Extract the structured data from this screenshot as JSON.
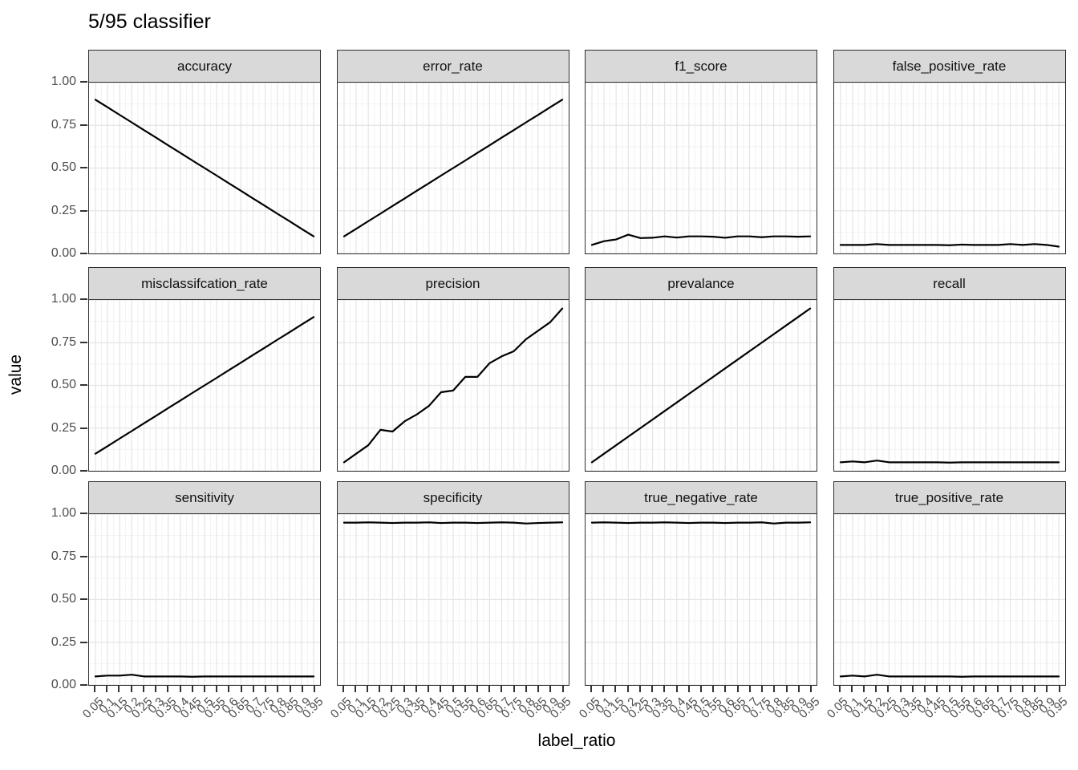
{
  "title": "5/95 classifier",
  "y_axis": {
    "title": "value",
    "tick_labels": [
      "1.00",
      "0.75",
      "0.50",
      "0.25",
      "0.00"
    ]
  },
  "x_axis": {
    "title": "label_ratio",
    "tick_labels": [
      "0.05",
      "0.1",
      "0.15",
      "0.2",
      "0.25",
      "0.3",
      "0.35",
      "0.4",
      "0.45",
      "0.5",
      "0.55",
      "0.6",
      "0.65",
      "0.7",
      "0.75",
      "0.8",
      "0.85",
      "0.9",
      "0.95"
    ]
  },
  "colors": {
    "line": "#000000",
    "strip_background": "#d9d9d9",
    "panel_border": "#2f2f2f",
    "grid_major": "#e4e4e4",
    "grid_minor": "#f2f2f2",
    "axis_text": "#4d4d4d",
    "tick_mark": "#333333"
  },
  "chart_data": {
    "type": "line",
    "title": "5/95 classifier",
    "xlabel": "label_ratio",
    "ylabel": "value",
    "ylim": [
      0,
      1
    ],
    "grid": "on",
    "legend": "none",
    "facet_layout": {
      "rows": 3,
      "cols": 4
    },
    "x": [
      0.05,
      0.1,
      0.15,
      0.2,
      0.25,
      0.3,
      0.35,
      0.4,
      0.45,
      0.5,
      0.55,
      0.6,
      0.65,
      0.7,
      0.75,
      0.8,
      0.85,
      0.9,
      0.95
    ],
    "y_major_ticks": [
      0.0,
      0.25,
      0.5,
      0.75,
      1.0
    ],
    "facets": [
      {
        "name": "accuracy",
        "values": [
          0.9,
          0.856,
          0.811,
          0.767,
          0.722,
          0.678,
          0.633,
          0.589,
          0.544,
          0.5,
          0.456,
          0.411,
          0.367,
          0.322,
          0.278,
          0.233,
          0.189,
          0.144,
          0.1
        ]
      },
      {
        "name": "error_rate",
        "values": [
          0.1,
          0.144,
          0.189,
          0.233,
          0.278,
          0.322,
          0.367,
          0.411,
          0.456,
          0.5,
          0.544,
          0.589,
          0.633,
          0.678,
          0.722,
          0.767,
          0.811,
          0.856,
          0.9
        ]
      },
      {
        "name": "f1_score",
        "values": [
          0.05,
          0.072,
          0.082,
          0.11,
          0.09,
          0.092,
          0.1,
          0.093,
          0.1,
          0.1,
          0.098,
          0.092,
          0.1,
          0.1,
          0.095,
          0.1,
          0.1,
          0.098,
          0.1
        ]
      },
      {
        "name": "false_positive_rate",
        "values": [
          0.05,
          0.05,
          0.05,
          0.055,
          0.05,
          0.05,
          0.05,
          0.05,
          0.05,
          0.048,
          0.052,
          0.05,
          0.05,
          0.05,
          0.055,
          0.05,
          0.055,
          0.05,
          0.04
        ]
      },
      {
        "name": "misclassifcation_rate",
        "values": [
          0.1,
          0.144,
          0.189,
          0.233,
          0.278,
          0.322,
          0.367,
          0.411,
          0.456,
          0.5,
          0.544,
          0.589,
          0.633,
          0.678,
          0.722,
          0.767,
          0.811,
          0.856,
          0.9
        ]
      },
      {
        "name": "precision",
        "values": [
          0.05,
          0.1,
          0.15,
          0.24,
          0.23,
          0.29,
          0.33,
          0.38,
          0.46,
          0.47,
          0.55,
          0.55,
          0.63,
          0.67,
          0.7,
          0.77,
          0.82,
          0.87,
          0.95
        ]
      },
      {
        "name": "prevalance",
        "values": [
          0.05,
          0.1,
          0.15,
          0.2,
          0.25,
          0.3,
          0.35,
          0.4,
          0.45,
          0.5,
          0.55,
          0.6,
          0.65,
          0.7,
          0.75,
          0.8,
          0.85,
          0.9,
          0.95
        ]
      },
      {
        "name": "recall",
        "values": [
          0.05,
          0.055,
          0.05,
          0.06,
          0.05,
          0.05,
          0.05,
          0.05,
          0.05,
          0.048,
          0.05,
          0.05,
          0.05,
          0.05,
          0.05,
          0.05,
          0.05,
          0.05,
          0.05
        ]
      },
      {
        "name": "sensitivity",
        "values": [
          0.05,
          0.055,
          0.055,
          0.06,
          0.05,
          0.05,
          0.05,
          0.05,
          0.048,
          0.05,
          0.05,
          0.05,
          0.05,
          0.05,
          0.05,
          0.05,
          0.05,
          0.05,
          0.05
        ]
      },
      {
        "name": "specificity",
        "values": [
          0.95,
          0.95,
          0.952,
          0.95,
          0.948,
          0.95,
          0.95,
          0.952,
          0.948,
          0.95,
          0.95,
          0.948,
          0.95,
          0.952,
          0.95,
          0.945,
          0.948,
          0.95,
          0.952
        ]
      },
      {
        "name": "true_negative_rate",
        "values": [
          0.95,
          0.952,
          0.95,
          0.948,
          0.95,
          0.95,
          0.952,
          0.95,
          0.948,
          0.95,
          0.95,
          0.948,
          0.95,
          0.95,
          0.952,
          0.945,
          0.95,
          0.95,
          0.952
        ]
      },
      {
        "name": "true_positive_rate",
        "values": [
          0.05,
          0.055,
          0.05,
          0.06,
          0.05,
          0.05,
          0.05,
          0.05,
          0.05,
          0.05,
          0.048,
          0.05,
          0.05,
          0.05,
          0.05,
          0.05,
          0.05,
          0.05,
          0.05
        ]
      }
    ]
  }
}
